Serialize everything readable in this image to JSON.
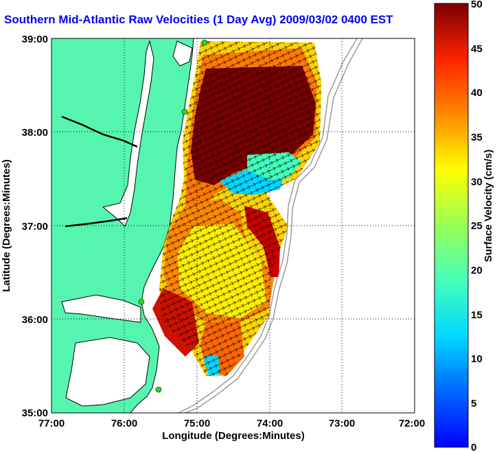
{
  "title": "Southern Mid-Atlantic Raw Velocities (1 Day Avg) 2009/03/02 0400 EST",
  "xlabel": "Longitude (Degrees:Minutes)",
  "ylabel": "Latitude (Degrees:Minutes)",
  "colorbar_label": "Surface Velocity (cm/s)",
  "x_ticks": [
    "77:00",
    "76:00",
    "75:00",
    "74:00",
    "73:00",
    "72:00"
  ],
  "y_ticks": [
    "39:00",
    "38:00",
    "37:00",
    "36:00",
    "35:00"
  ],
  "colorbar_ticks": [
    "0",
    "5",
    "10",
    "15",
    "20",
    "25",
    "30",
    "35",
    "40",
    "45",
    "50"
  ],
  "map": {
    "lon_range": [
      -77,
      -72
    ],
    "lat_range": [
      35,
      39
    ],
    "velocity_range_cm_s": [
      0,
      50
    ],
    "grid": true,
    "colormap": "jet",
    "colors": {
      "land": "#55f5b0",
      "title": "#0000ff",
      "station": "#22dd22",
      "bathymetry": "#999999"
    }
  }
}
